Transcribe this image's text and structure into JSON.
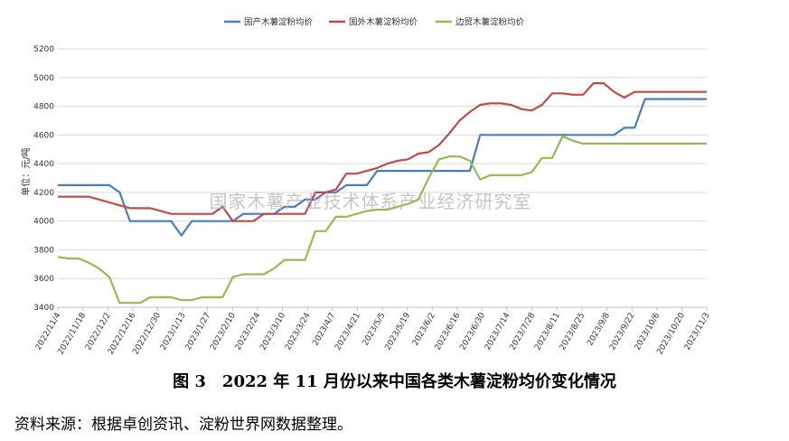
{
  "chart_data": {
    "type": "line",
    "ylabel": "单位：元/吨",
    "ylim": [
      3400,
      5200
    ],
    "yticks": [
      3400,
      3600,
      3800,
      4000,
      4200,
      4400,
      4600,
      4800,
      5000,
      5200
    ],
    "xticklabels": [
      "2022/11/4",
      "2022/11/18",
      "2022/12/2",
      "2022/12/16",
      "2022/12/30",
      "2023/1/13",
      "2023/1/27",
      "2023/2/10",
      "2023/2/24",
      "2023/3/10",
      "2023/3/24",
      "2023/4/7",
      "2023/4/21",
      "2023/5/5",
      "2023/5/19",
      "2023/6/2",
      "2023/6/16",
      "2023/6/30",
      "2023/7/14",
      "2023/7/28",
      "2023/8/11",
      "2023/8/25",
      "2023/9/8",
      "2023/9/22",
      "2023/10/6",
      "2023/10/20",
      "2023/11/3"
    ],
    "legend_position": "top",
    "grid": "horizontal",
    "series": [
      {
        "name": "国产木薯淀粉均价",
        "color": "#4a7ebb",
        "values": [
          4250,
          4250,
          4250,
          4250,
          4250,
          4250,
          4200,
          4000,
          4000,
          4000,
          4000,
          4000,
          3900,
          4000,
          4000,
          4000,
          4000,
          4000,
          4050,
          4050,
          4050,
          4050,
          4100,
          4100,
          4150,
          4150,
          4200,
          4200,
          4250,
          4250,
          4250,
          4350,
          4350,
          4350,
          4350,
          4350,
          4350,
          4350,
          4350,
          4350,
          4350,
          4600,
          4600,
          4600,
          4600,
          4600,
          4600,
          4600,
          4600,
          4600,
          4600,
          4600,
          4600,
          4600,
          4600,
          4650,
          4650,
          4850,
          4850,
          4850,
          4850,
          4850,
          4850,
          4850
        ]
      },
      {
        "name": "国外木薯淀粉均价",
        "color": "#be4b48",
        "values": [
          4170,
          4170,
          4170,
          4170,
          4150,
          4130,
          4110,
          4090,
          4090,
          4090,
          4070,
          4050,
          4050,
          4050,
          4050,
          4050,
          4100,
          4000,
          4000,
          4000,
          4050,
          4050,
          4050,
          4050,
          4050,
          4200,
          4200,
          4220,
          4330,
          4330,
          4350,
          4370,
          4400,
          4420,
          4430,
          4470,
          4480,
          4530,
          4610,
          4700,
          4760,
          4810,
          4820,
          4820,
          4810,
          4780,
          4770,
          4810,
          4890,
          4890,
          4880,
          4880,
          4960,
          4960,
          4900,
          4860,
          4900,
          4900,
          4900,
          4900,
          4900,
          4900,
          4900,
          4900
        ]
      },
      {
        "name": "边贸木薯淀粉均价",
        "color": "#98b954",
        "values": [
          3750,
          3740,
          3740,
          3710,
          3670,
          3610,
          3430,
          3430,
          3430,
          3470,
          3470,
          3470,
          3450,
          3450,
          3470,
          3470,
          3470,
          3610,
          3630,
          3630,
          3630,
          3670,
          3730,
          3730,
          3730,
          3930,
          3930,
          4030,
          4030,
          4050,
          4070,
          4080,
          4080,
          4100,
          4120,
          4150,
          4300,
          4430,
          4450,
          4450,
          4420,
          4290,
          4320,
          4320,
          4320,
          4320,
          4340,
          4440,
          4440,
          4590,
          4560,
          4540,
          4540,
          4540,
          4540,
          4540,
          4540,
          4540,
          4540,
          4540,
          4540,
          4540,
          4540,
          4540
        ]
      }
    ]
  },
  "watermark": "国家木薯产业技术体系产业经济研究室",
  "caption": "图 3　2022 年 11 月份以来中国各类木薯淀粉均价变化情况",
  "source_note": "资料来源：根据卓创资讯、淀粉世界网数据整理。"
}
